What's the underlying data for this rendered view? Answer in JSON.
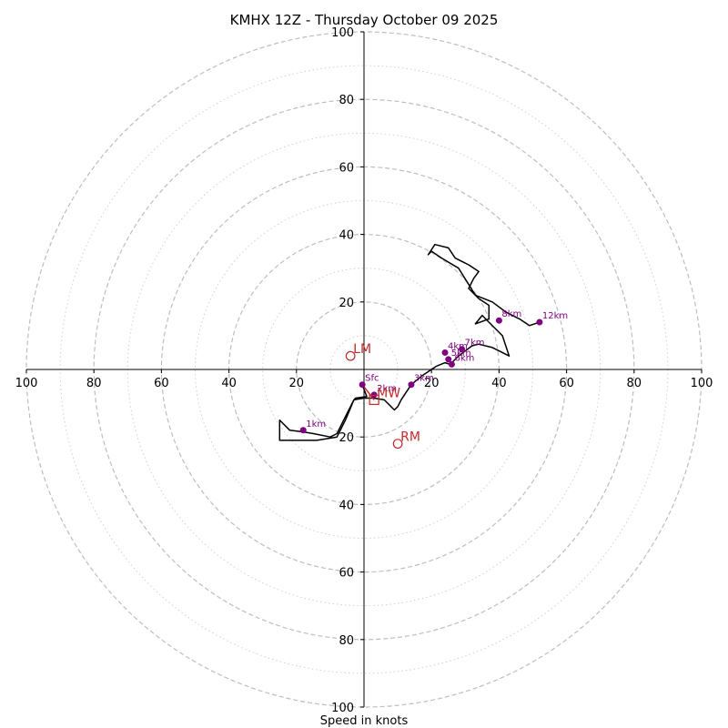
{
  "chart_data": {
    "type": "hodograph",
    "title": "KMHX 12Z - Thursday October 09 2025",
    "xlabel": "Speed in knots",
    "units": "knots",
    "max_speed": 100,
    "ring_speeds_major": [
      20,
      40,
      60,
      80,
      100
    ],
    "ring_speeds_minor": [
      10,
      30,
      50,
      70,
      90
    ],
    "x_tick_labels": [
      "100",
      "80",
      "60",
      "40",
      "20",
      "20",
      "40",
      "60",
      "80",
      "100"
    ],
    "x_tick_values": [
      -100,
      -80,
      -60,
      -40,
      -20,
      20,
      40,
      60,
      80,
      100
    ],
    "y_tick_labels": [
      "100",
      "80",
      "60",
      "40",
      "20",
      "20",
      "40",
      "60",
      "80",
      "100"
    ],
    "y_tick_values": [
      100,
      80,
      60,
      40,
      20,
      -20,
      -40,
      -60,
      -80,
      -100
    ],
    "hodograph_trace": [
      [
        -0.5,
        -4.5
      ],
      [
        0.8,
        -8.0
      ],
      [
        -2.5,
        -8.5
      ],
      [
        -3,
        -9
      ],
      [
        -5.5,
        -15
      ],
      [
        -8,
        -20
      ],
      [
        -14,
        -21
      ],
      [
        -25,
        -21
      ],
      [
        -25,
        -15
      ],
      [
        -22,
        -18
      ],
      [
        -18,
        -18.5
      ],
      [
        -15,
        -19
      ],
      [
        -10,
        -20
      ],
      [
        -8,
        -19
      ],
      [
        -6,
        -15
      ],
      [
        -3,
        -9
      ],
      [
        0,
        -8.5
      ],
      [
        3,
        -8.5
      ],
      [
        6,
        -9
      ],
      [
        8,
        -11
      ],
      [
        9,
        -12
      ],
      [
        10,
        -11
      ],
      [
        11,
        -9
      ],
      [
        12,
        -7.5
      ],
      [
        14,
        -4.5
      ],
      [
        17,
        -2
      ],
      [
        20,
        0
      ],
      [
        21.5,
        1
      ],
      [
        24,
        2
      ],
      [
        25.5,
        1.5
      ],
      [
        27,
        3
      ],
      [
        28,
        4
      ],
      [
        30,
        5.5
      ],
      [
        32,
        7
      ],
      [
        34,
        7.5
      ],
      [
        38,
        6.5
      ],
      [
        40,
        5.5
      ],
      [
        43,
        4
      ],
      [
        41,
        10
      ],
      [
        37,
        14
      ],
      [
        35,
        16
      ],
      [
        33,
        13.5
      ],
      [
        37,
        15
      ],
      [
        37,
        17
      ],
      [
        37,
        19
      ],
      [
        34,
        21
      ],
      [
        31,
        24
      ],
      [
        32.5,
        27
      ],
      [
        34,
        29
      ],
      [
        31,
        31
      ],
      [
        27,
        33
      ],
      [
        25,
        36
      ],
      [
        21,
        37
      ],
      [
        19,
        34
      ],
      [
        20,
        35
      ],
      [
        23,
        33
      ],
      [
        28,
        30
      ],
      [
        33,
        22
      ],
      [
        38,
        20
      ],
      [
        42,
        17
      ],
      [
        46,
        15
      ],
      [
        49,
        13
      ],
      [
        52,
        14
      ]
    ],
    "height_markers": [
      {
        "label": "Sfc",
        "u": -0.5,
        "v": -4.5
      },
      {
        "label": "1km",
        "u": -18,
        "v": -18
      },
      {
        "label": "2km",
        "u": 3,
        "v": -7.5
      },
      {
        "label": "3km",
        "u": 14,
        "v": -4.5
      },
      {
        "label": "4km",
        "u": 24,
        "v": 5
      },
      {
        "label": "5km",
        "u": 25,
        "v": 3
      },
      {
        "label": "6km",
        "u": 26,
        "v": 1.5
      },
      {
        "label": "7km",
        "u": 29,
        "v": 6
      },
      {
        "label": "8km",
        "u": 40,
        "v": 14.5
      },
      {
        "label": "12km",
        "u": 52,
        "v": 14
      }
    ],
    "storm_motion": [
      {
        "label": "LM",
        "u": -4,
        "v": 4,
        "marker": "circle"
      },
      {
        "label": "RM",
        "u": 10,
        "v": -22,
        "marker": "circle"
      },
      {
        "label": "MW",
        "u": 3,
        "v": -9,
        "marker": "square"
      }
    ],
    "shear_vector": {
      "from": [
        -0.5,
        -4.5
      ],
      "to": [
        3,
        -9
      ]
    },
    "colors": {
      "trace": "#000000",
      "height_marker": "#800080",
      "storm_motion": "#c62828",
      "ring_major": "#bdbdbd",
      "ring_minor": "#cfcfcf"
    }
  }
}
